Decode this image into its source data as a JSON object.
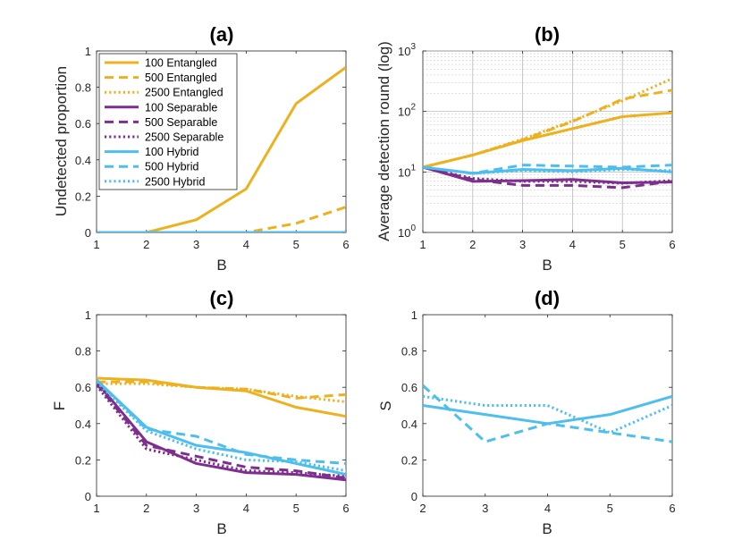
{
  "colors": {
    "entangled": "#EDB120",
    "separable": "#7E2F8E",
    "hybrid": "#4DBEEE",
    "axis": "#262626",
    "grid": "#b0b0b0"
  },
  "legend": [
    {
      "label": "100 Entangled",
      "color": "#EDB120",
      "dash": "solid"
    },
    {
      "label": "500 Entangled",
      "color": "#EDB120",
      "dash": "dashed"
    },
    {
      "label": "2500 Entangled",
      "color": "#EDB120",
      "dash": "dotted"
    },
    {
      "label": "100 Separable",
      "color": "#7E2F8E",
      "dash": "solid"
    },
    {
      "label": "500 Separable",
      "color": "#7E2F8E",
      "dash": "dashed"
    },
    {
      "label": "2500 Separable",
      "color": "#7E2F8E",
      "dash": "dotted"
    },
    {
      "label": "100 Hybrid",
      "color": "#4DBEEE",
      "dash": "solid"
    },
    {
      "label": "500 Hybrid",
      "color": "#4DBEEE",
      "dash": "dashed"
    },
    {
      "label": "2500 Hybrid",
      "color": "#4DBEEE",
      "dash": "dotted"
    }
  ],
  "chart_data": [
    {
      "id": "a",
      "type": "line",
      "title": "(a)",
      "xlabel": "B",
      "ylabel": "Undetected proportion",
      "xlim": [
        1,
        6
      ],
      "ylim": [
        0,
        1
      ],
      "xticks": [
        1,
        2,
        3,
        4,
        5,
        6
      ],
      "yticks": [
        0,
        0.2,
        0.4,
        0.6,
        0.8,
        1
      ],
      "ytick_labels": [
        "0",
        "0.2",
        "0.4",
        "0.6",
        "0.8",
        "1"
      ],
      "yscale": "linear",
      "grid": false,
      "legend_position": "top-left",
      "series": [
        {
          "name": "500 Separable",
          "color": "#7E2F8E",
          "dash": "dashed",
          "x": [
            1,
            2,
            3,
            4,
            5,
            6
          ],
          "y": [
            0,
            0,
            0,
            0,
            0,
            0
          ]
        },
        {
          "name": "2500 Separable",
          "color": "#7E2F8E",
          "dash": "dotted",
          "x": [
            1,
            2,
            3,
            4,
            5,
            6
          ],
          "y": [
            0,
            0,
            0,
            0,
            0,
            0
          ]
        },
        {
          "name": "100 Separable",
          "color": "#7E2F8E",
          "dash": "solid",
          "x": [
            1,
            2,
            3,
            4,
            5,
            6
          ],
          "y": [
            0,
            0,
            0,
            0,
            0,
            0
          ]
        },
        {
          "name": "2500 Entangled",
          "color": "#EDB120",
          "dash": "dotted",
          "x": [
            1,
            2,
            3,
            4,
            5,
            6
          ],
          "y": [
            0,
            0,
            0,
            0,
            0,
            0
          ]
        },
        {
          "name": "500 Entangled",
          "color": "#EDB120",
          "dash": "dashed",
          "x": [
            1,
            2,
            3,
            4,
            5,
            6
          ],
          "y": [
            0,
            0,
            0,
            0,
            0.05,
            0.14
          ]
        },
        {
          "name": "100 Entangled",
          "color": "#EDB120",
          "dash": "solid",
          "x": [
            1,
            2,
            3,
            4,
            5,
            6
          ],
          "y": [
            0,
            0,
            0.07,
            0.24,
            0.71,
            0.91
          ]
        },
        {
          "name": "500 Hybrid",
          "color": "#4DBEEE",
          "dash": "dashed",
          "x": [
            1,
            2,
            3,
            4,
            5,
            6
          ],
          "y": [
            0,
            0,
            0,
            0,
            0,
            0
          ]
        },
        {
          "name": "2500 Hybrid",
          "color": "#4DBEEE",
          "dash": "dotted",
          "x": [
            1,
            2,
            3,
            4,
            5,
            6
          ],
          "y": [
            0,
            0,
            0,
            0,
            0,
            0
          ]
        },
        {
          "name": "100 Hybrid",
          "color": "#4DBEEE",
          "dash": "solid",
          "x": [
            1,
            2,
            3,
            4,
            5,
            6
          ],
          "y": [
            0,
            0,
            0,
            0,
            0,
            0
          ]
        }
      ]
    },
    {
      "id": "b",
      "type": "line",
      "title": "(b)",
      "xlabel": "B",
      "ylabel": "Average detection round (log)",
      "xlim": [
        1,
        6
      ],
      "ylim": [
        1,
        1000
      ],
      "xticks": [
        1,
        2,
        3,
        4,
        5,
        6
      ],
      "yticks": [
        1,
        10,
        100,
        1000
      ],
      "ytick_labels": [
        "10^0",
        "10^1",
        "10^2",
        "10^3"
      ],
      "yscale": "log",
      "grid": true,
      "series": [
        {
          "name": "100 Entangled",
          "color": "#EDB120",
          "dash": "solid",
          "x": [
            1,
            2,
            3,
            4,
            5,
            6
          ],
          "y": [
            12,
            19,
            33,
            52,
            82,
            95
          ]
        },
        {
          "name": "500 Entangled",
          "color": "#EDB120",
          "dash": "dashed",
          "x": [
            1,
            2,
            3,
            4,
            5,
            6
          ],
          "y": [
            12,
            19,
            34,
            68,
            160,
            225
          ]
        },
        {
          "name": "2500 Entangled",
          "color": "#EDB120",
          "dash": "dotted",
          "x": [
            1,
            2,
            3,
            4,
            5,
            6
          ],
          "y": [
            12,
            19,
            35,
            70,
            150,
            350
          ]
        },
        {
          "name": "100 Separable",
          "color": "#7E2F8E",
          "dash": "solid",
          "x": [
            1,
            2,
            3,
            4,
            5,
            6
          ],
          "y": [
            12,
            7,
            7.2,
            7.5,
            6.6,
            6.8
          ]
        },
        {
          "name": "500 Separable",
          "color": "#7E2F8E",
          "dash": "dashed",
          "x": [
            1,
            2,
            3,
            4,
            5,
            6
          ],
          "y": [
            12,
            7.5,
            6,
            6,
            5.5,
            7
          ]
        },
        {
          "name": "2500 Separable",
          "color": "#7E2F8E",
          "dash": "dotted",
          "x": [
            1,
            2,
            3,
            4,
            5,
            6
          ],
          "y": [
            12,
            7.8,
            7,
            7,
            6.5,
            7.2
          ]
        },
        {
          "name": "100 Hybrid",
          "color": "#4DBEEE",
          "dash": "solid",
          "x": [
            1,
            2,
            3,
            4,
            5,
            6
          ],
          "y": [
            12,
            9.5,
            11,
            10.5,
            11.5,
            10
          ]
        },
        {
          "name": "500 Hybrid",
          "color": "#4DBEEE",
          "dash": "dashed",
          "x": [
            1,
            2,
            3,
            4,
            5,
            6
          ],
          "y": [
            12,
            9.5,
            13,
            12.5,
            12,
            13
          ]
        },
        {
          "name": "2500 Hybrid",
          "color": "#4DBEEE",
          "dash": "dotted",
          "x": [
            1,
            2,
            3,
            4,
            5,
            6
          ],
          "y": [
            12,
            9.5,
            10.5,
            10,
            11,
            10.5
          ]
        }
      ]
    },
    {
      "id": "c",
      "type": "line",
      "title": "(c)",
      "xlabel": "B",
      "ylabel": "F",
      "xlim": [
        1,
        6
      ],
      "ylim": [
        0,
        1
      ],
      "xticks": [
        1,
        2,
        3,
        4,
        5,
        6
      ],
      "yticks": [
        0,
        0.2,
        0.4,
        0.6,
        0.8,
        1
      ],
      "ytick_labels": [
        "0",
        "0.2",
        "0.4",
        "0.6",
        "0.8",
        "1"
      ],
      "yscale": "linear",
      "grid": false,
      "series": [
        {
          "name": "100 Entangled",
          "color": "#EDB120",
          "dash": "solid",
          "x": [
            1,
            2,
            3,
            4,
            5,
            6
          ],
          "y": [
            0.65,
            0.64,
            0.6,
            0.58,
            0.49,
            0.44
          ]
        },
        {
          "name": "500 Entangled",
          "color": "#EDB120",
          "dash": "dashed",
          "x": [
            1,
            2,
            3,
            4,
            5,
            6
          ],
          "y": [
            0.63,
            0.63,
            0.6,
            0.59,
            0.54,
            0.56
          ]
        },
        {
          "name": "2500 Entangled",
          "color": "#EDB120",
          "dash": "dotted",
          "x": [
            1,
            2,
            3,
            4,
            5,
            6
          ],
          "y": [
            0.62,
            0.62,
            0.6,
            0.59,
            0.55,
            0.52
          ]
        },
        {
          "name": "100 Separable",
          "color": "#7E2F8E",
          "dash": "solid",
          "x": [
            1,
            2,
            3,
            4,
            5,
            6
          ],
          "y": [
            0.63,
            0.3,
            0.18,
            0.13,
            0.12,
            0.09
          ]
        },
        {
          "name": "500 Separable",
          "color": "#7E2F8E",
          "dash": "dashed",
          "x": [
            1,
            2,
            3,
            4,
            5,
            6
          ],
          "y": [
            0.62,
            0.28,
            0.22,
            0.16,
            0.14,
            0.1
          ]
        },
        {
          "name": "2500 Separable",
          "color": "#7E2F8E",
          "dash": "dotted",
          "x": [
            1,
            2,
            3,
            4,
            5,
            6
          ],
          "y": [
            0.61,
            0.26,
            0.2,
            0.14,
            0.13,
            0.11
          ]
        },
        {
          "name": "100 Hybrid",
          "color": "#4DBEEE",
          "dash": "solid",
          "x": [
            1,
            2,
            3,
            4,
            5,
            6
          ],
          "y": [
            0.64,
            0.38,
            0.28,
            0.24,
            0.18,
            0.12
          ]
        },
        {
          "name": "500 Hybrid",
          "color": "#4DBEEE",
          "dash": "dashed",
          "x": [
            1,
            2,
            3,
            4,
            5,
            6
          ],
          "y": [
            0.64,
            0.37,
            0.33,
            0.23,
            0.2,
            0.18
          ]
        },
        {
          "name": "2500 Hybrid",
          "color": "#4DBEEE",
          "dash": "dotted",
          "x": [
            1,
            2,
            3,
            4,
            5,
            6
          ],
          "y": [
            0.63,
            0.36,
            0.26,
            0.2,
            0.19,
            0.14
          ]
        }
      ]
    },
    {
      "id": "d",
      "type": "line",
      "title": "(d)",
      "xlabel": "B",
      "ylabel": "S",
      "xlim": [
        2,
        6
      ],
      "ylim": [
        0,
        1
      ],
      "xticks": [
        2,
        3,
        4,
        5,
        6
      ],
      "yticks": [
        0,
        0.2,
        0.4,
        0.6,
        0.8,
        1
      ],
      "ytick_labels": [
        "0",
        "0.2",
        "0.4",
        "0.6",
        "0.8",
        "1"
      ],
      "yscale": "linear",
      "grid": false,
      "series": [
        {
          "name": "100 Hybrid",
          "color": "#4DBEEE",
          "dash": "solid",
          "x": [
            2,
            3,
            4,
            5,
            6
          ],
          "y": [
            0.5,
            0.45,
            0.4,
            0.45,
            0.55
          ]
        },
        {
          "name": "500 Hybrid",
          "color": "#4DBEEE",
          "dash": "dashed",
          "x": [
            2,
            3,
            4,
            5,
            6
          ],
          "y": [
            0.61,
            0.3,
            0.4,
            0.35,
            0.3
          ]
        },
        {
          "name": "2500 Hybrid",
          "color": "#4DBEEE",
          "dash": "dotted",
          "x": [
            2,
            3,
            4,
            5,
            6
          ],
          "y": [
            0.55,
            0.5,
            0.5,
            0.35,
            0.5
          ]
        }
      ]
    }
  ]
}
